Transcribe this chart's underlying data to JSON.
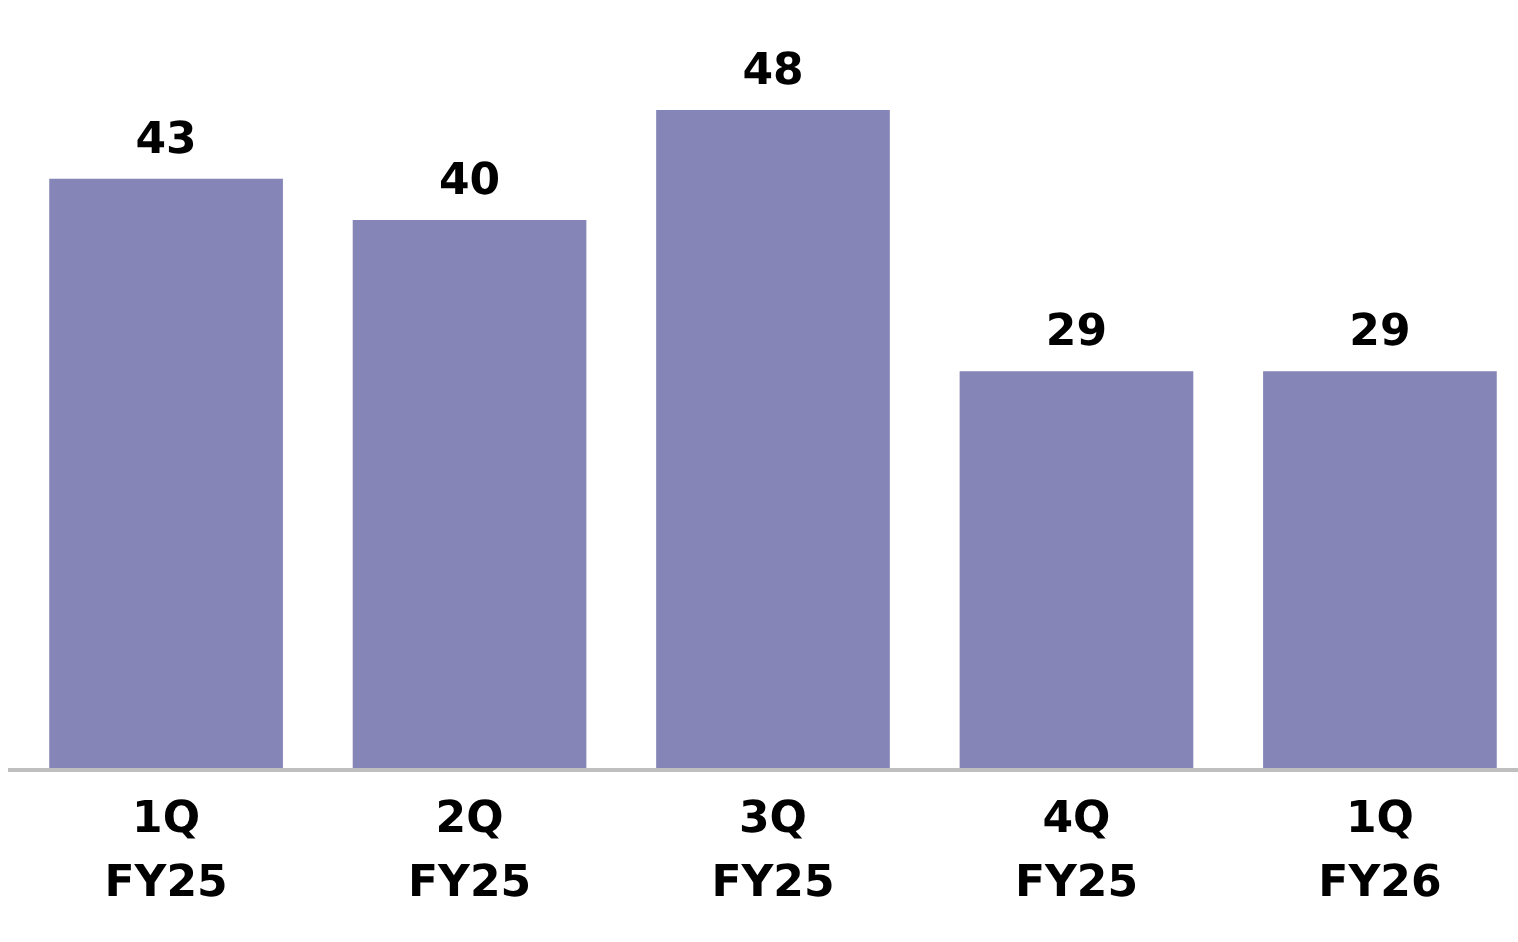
{
  "chart_data": {
    "type": "bar",
    "categories": [
      "1Q FY25",
      "2Q FY25",
      "3Q FY25",
      "4Q FY25",
      "1Q FY26"
    ],
    "values": [
      43,
      40,
      48,
      29,
      29
    ],
    "color": "#8585b8",
    "data_labels": true
  }
}
